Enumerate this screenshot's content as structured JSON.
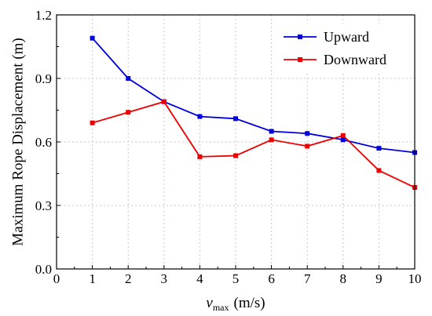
{
  "chart_data": {
    "type": "line",
    "title": "",
    "ylabel": "Maximum Rope Displacement (m)",
    "xlabel": {
      "symbol": "v",
      "subscript": "max",
      "unit": "(m/s)"
    },
    "xlim": [
      0,
      10
    ],
    "ylim": [
      0.0,
      1.2
    ],
    "xticks": [
      "0",
      "1",
      "2",
      "3",
      "4",
      "5",
      "6",
      "7",
      "8",
      "9",
      "10"
    ],
    "yticks": [
      "0.0",
      "0.3",
      "0.6",
      "0.9",
      "1.2"
    ],
    "grid": true,
    "legend_position": "top-right",
    "series": [
      {
        "name": "Upward",
        "color": "#0000dd",
        "x": [
          1,
          2,
          3,
          4,
          5,
          6,
          7,
          8,
          9,
          10
        ],
        "values": [
          1.09,
          0.9,
          0.79,
          0.72,
          0.71,
          0.65,
          0.64,
          0.61,
          0.57,
          0.55
        ]
      },
      {
        "name": "Downward",
        "color": "#ee0000",
        "x": [
          1,
          2,
          3,
          4,
          5,
          6,
          7,
          8,
          9,
          10
        ],
        "values": [
          0.69,
          0.74,
          0.79,
          0.53,
          0.535,
          0.61,
          0.58,
          0.63,
          0.465,
          0.385
        ]
      }
    ]
  }
}
